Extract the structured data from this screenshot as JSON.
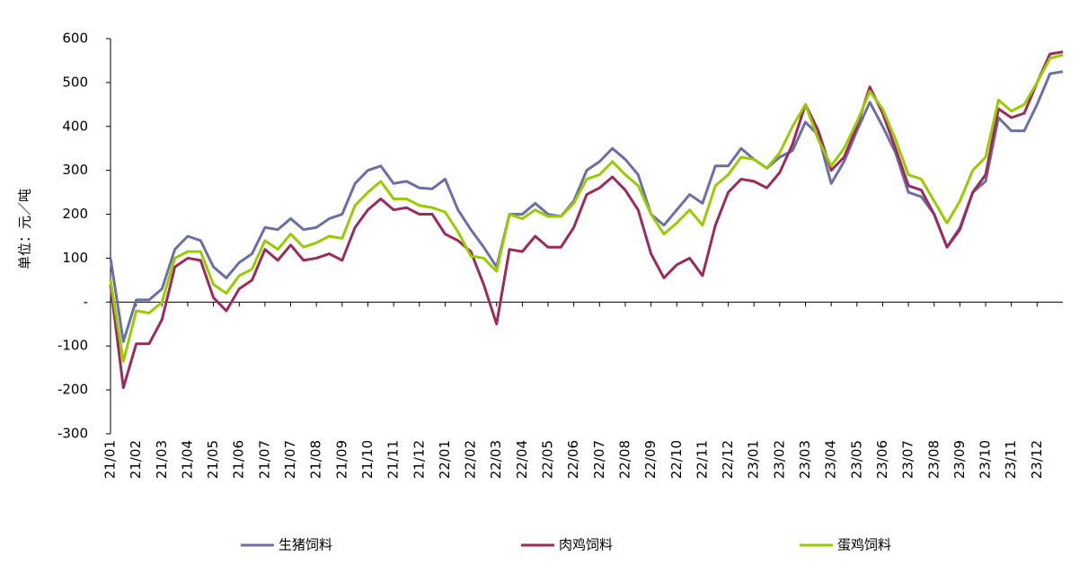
{
  "chart_data": {
    "type": "line",
    "y_label": "单位：元／吨",
    "categories": [
      "21/01",
      null,
      "21/02",
      null,
      "21/03",
      null,
      "21/04",
      null,
      "21/05",
      null,
      "21/06",
      null,
      "21/07",
      null,
      "21/07",
      null,
      "21/08",
      null,
      "21/09",
      null,
      "21/10",
      null,
      "21/11",
      null,
      "21/12",
      null,
      "22/01",
      null,
      "22/02",
      null,
      "22/03",
      null,
      "22/04",
      null,
      "22/05",
      null,
      "22/06",
      null,
      "22/07",
      null,
      "22/08",
      null,
      "22/09",
      null,
      "22/10",
      null,
      "22/11",
      null,
      "22/12",
      null,
      "23/01",
      null,
      "23/02",
      null,
      "23/03",
      null,
      "23/04",
      null,
      "23/05",
      null,
      "23/06",
      null,
      "23/07",
      null,
      "23/08",
      null,
      "23/09",
      null,
      "23/10",
      null,
      "23/11",
      null,
      "23/12",
      null,
      null
    ],
    "series": [
      {
        "name": "生猪饲料",
        "color": "#6b6fa8",
        "values": [
          100,
          -90,
          5,
          5,
          30,
          120,
          150,
          140,
          80,
          55,
          90,
          110,
          170,
          165,
          190,
          165,
          170,
          190,
          200,
          270,
          300,
          310,
          270,
          275,
          260,
          258,
          280,
          210,
          165,
          125,
          80,
          200,
          200,
          225,
          200,
          195,
          230,
          300,
          320,
          350,
          325,
          290,
          200,
          175,
          210,
          245,
          225,
          310,
          310,
          350,
          325,
          305,
          330,
          345,
          410,
          380,
          270,
          320,
          390,
          455,
          400,
          340,
          250,
          240,
          200,
          125,
          170,
          250,
          275,
          420,
          390,
          390,
          450,
          520,
          525
        ]
      },
      {
        "name": "肉鸡饲料",
        "color": "#9c2a5c",
        "values": [
          40,
          -195,
          -95,
          -95,
          -40,
          80,
          100,
          95,
          10,
          -20,
          30,
          50,
          120,
          95,
          130,
          95,
          100,
          110,
          95,
          170,
          210,
          235,
          210,
          215,
          200,
          200,
          155,
          140,
          115,
          40,
          -50,
          120,
          115,
          150,
          125,
          125,
          170,
          245,
          260,
          285,
          255,
          210,
          110,
          55,
          85,
          100,
          60,
          175,
          250,
          280,
          275,
          260,
          295,
          360,
          450,
          390,
          300,
          330,
          400,
          490,
          430,
          350,
          265,
          255,
          200,
          125,
          165,
          250,
          290,
          440,
          420,
          430,
          500,
          565,
          570
        ]
      },
      {
        "name": "蛋鸡饲料",
        "color": "#99cc00",
        "values": [
          50,
          -135,
          -20,
          -25,
          0,
          100,
          115,
          115,
          40,
          20,
          60,
          75,
          140,
          120,
          155,
          125,
          135,
          150,
          145,
          220,
          250,
          275,
          235,
          235,
          220,
          215,
          205,
          160,
          105,
          100,
          70,
          200,
          190,
          210,
          195,
          195,
          225,
          280,
          290,
          320,
          290,
          265,
          200,
          155,
          180,
          210,
          175,
          265,
          290,
          330,
          325,
          305,
          340,
          400,
          450,
          370,
          310,
          350,
          410,
          480,
          440,
          370,
          290,
          280,
          230,
          180,
          230,
          300,
          330,
          460,
          435,
          450,
          500,
          555,
          563
        ]
      }
    ],
    "ylim": [
      -300,
      600
    ],
    "yticks": [
      -300,
      -200,
      -100,
      {
        "value": 0,
        "label": "-"
      },
      100,
      200,
      300,
      400,
      500,
      600
    ],
    "legend": "bottom"
  }
}
